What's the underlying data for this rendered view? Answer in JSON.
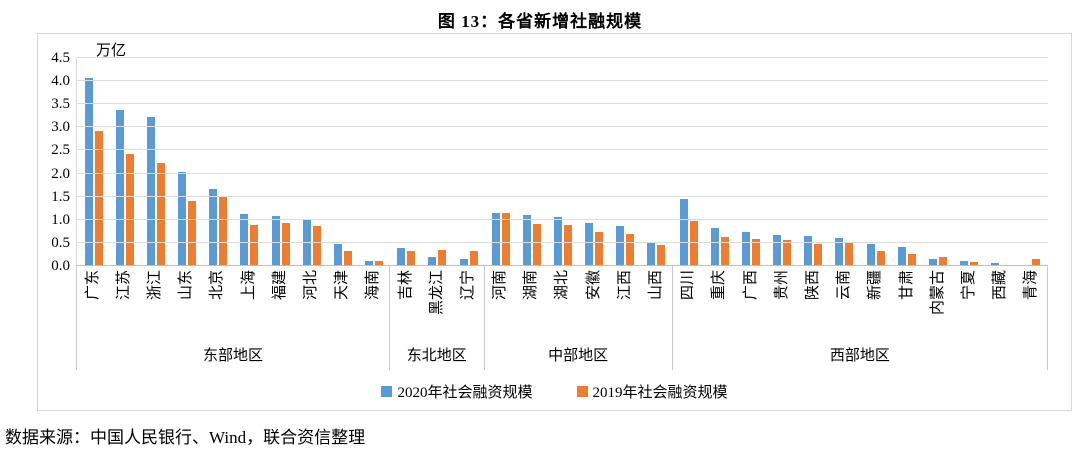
{
  "title": "图 13：各省新增社融规模",
  "footer": {
    "source_text": "数据来源：中国人民银行、Wind，联合资信整理"
  },
  "chart_data": {
    "type": "bar",
    "title": "图 13：各省新增社融规模",
    "unit_label": "万亿",
    "ylim": [
      0,
      4.5
    ],
    "ytick_step": 0.5,
    "yticks": [
      "0.0",
      "0.5",
      "1.0",
      "1.5",
      "2.0",
      "2.5",
      "3.0",
      "3.5",
      "4.0",
      "4.5"
    ],
    "grid": true,
    "legend_position": "bottom",
    "series": [
      {
        "name": "2020年社会融资规模",
        "color": "#5B9BD5"
      },
      {
        "name": "2019年社会融资规模",
        "color": "#ED7D31"
      }
    ],
    "groups": [
      {
        "region": "东部地区",
        "provinces": [
          "广东",
          "江苏",
          "浙江",
          "山东",
          "北京",
          "上海",
          "福建",
          "河北",
          "天津",
          "海南"
        ],
        "values": [
          [
            4.07,
            3.37,
            3.22,
            2.02,
            1.66,
            1.1,
            1.06,
            1.01,
            0.46,
            0.09
          ],
          [
            2.92,
            2.42,
            2.22,
            1.4,
            1.47,
            0.88,
            0.92,
            0.84,
            0.3,
            0.09
          ]
        ]
      },
      {
        "region": "东北地区",
        "provinces": [
          "吉林",
          "黑龙江",
          "辽宁"
        ],
        "values": [
          [
            0.36,
            0.18,
            0.12
          ],
          [
            0.3,
            0.33,
            0.31
          ]
        ]
      },
      {
        "region": "中部地区",
        "provinces": [
          "河南",
          "湖南",
          "湖北",
          "安徽",
          "江西",
          "山西"
        ],
        "values": [
          [
            1.14,
            1.08,
            1.04,
            0.92,
            0.85,
            0.47
          ],
          [
            1.13,
            0.89,
            0.88,
            0.72,
            0.67,
            0.43
          ]
        ]
      },
      {
        "region": "西部地区",
        "provinces": [
          "四川",
          "重庆",
          "广西",
          "贵州",
          "陕西",
          "云南",
          "新疆",
          "甘肃",
          "内蒙古",
          "宁夏",
          "西藏",
          "青海"
        ],
        "values": [
          [
            1.43,
            0.81,
            0.72,
            0.66,
            0.63,
            0.58,
            0.46,
            0.4,
            0.12,
            0.08,
            0.05,
            0.0
          ],
          [
            0.96,
            0.61,
            0.56,
            0.54,
            0.45,
            0.51,
            0.31,
            0.25,
            0.17,
            0.07,
            0.0,
            0.14
          ]
        ]
      }
    ]
  }
}
